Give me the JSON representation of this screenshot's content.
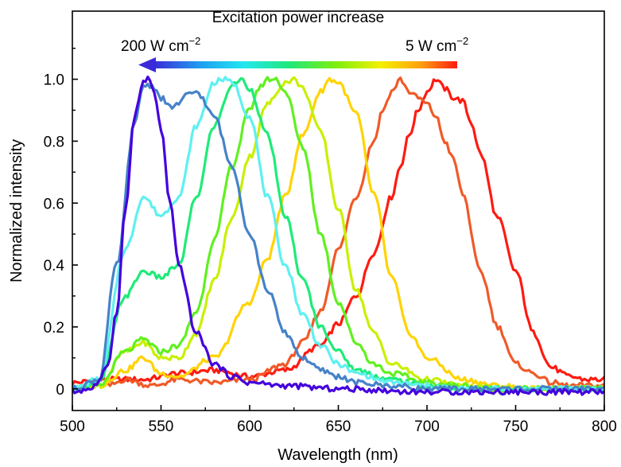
{
  "chart_data": {
    "type": "line",
    "title": "",
    "xlabel": "Wavelength (nm)",
    "ylabel": "Normalized intensity",
    "xlim": [
      500,
      800
    ],
    "ylim": [
      -0.07,
      1.22
    ],
    "xticks": [
      500,
      550,
      600,
      650,
      700,
      750,
      800
    ],
    "yticks": [
      0,
      0.2,
      0.4,
      0.6,
      0.8,
      1.0
    ],
    "ytick_labels": [
      "0",
      "0.2",
      "0.4",
      "0.6",
      "0.8",
      "1.0"
    ],
    "grid": false,
    "annotations": {
      "arrow_title": "Excitation power increase",
      "left_label_base": "200 W cm",
      "left_label_sup": "−2",
      "right_label_base": "5 W cm",
      "right_label_sup": "−2"
    },
    "series": [
      {
        "name": "red",
        "color": "#ff1a10",
        "x": [
          500,
          520,
          540,
          560,
          580,
          600,
          620,
          640,
          650,
          660,
          670,
          680,
          685,
          690,
          695,
          700,
          705,
          710,
          715,
          720,
          725,
          730,
          740,
          750,
          760,
          770,
          780,
          790,
          800
        ],
        "y": [
          0.02,
          0.03,
          0.03,
          0.05,
          0.06,
          0.04,
          0.06,
          0.14,
          0.21,
          0.3,
          0.44,
          0.62,
          0.72,
          0.82,
          0.9,
          0.96,
          1.0,
          0.97,
          0.94,
          0.93,
          0.86,
          0.76,
          0.55,
          0.38,
          0.18,
          0.07,
          0.04,
          0.03,
          0.03
        ]
      },
      {
        "name": "orange-red",
        "color": "#f05a28",
        "x": [
          500,
          520,
          530,
          545,
          560,
          580,
          600,
          620,
          630,
          640,
          650,
          660,
          670,
          675,
          680,
          685,
          690,
          695,
          700,
          705,
          710,
          715,
          720,
          730,
          740,
          750,
          760,
          770,
          780,
          790,
          800
        ],
        "y": [
          0.0,
          0.01,
          0.03,
          0.01,
          0.03,
          0.02,
          0.03,
          0.08,
          0.15,
          0.25,
          0.45,
          0.62,
          0.8,
          0.9,
          0.96,
          1.0,
          0.96,
          0.94,
          0.92,
          0.88,
          0.8,
          0.74,
          0.63,
          0.38,
          0.2,
          0.08,
          0.05,
          0.02,
          0.01,
          0.01,
          0.01
        ]
      },
      {
        "name": "yellow",
        "color": "#ffd300",
        "x": [
          500,
          515,
          530,
          540,
          550,
          560,
          580,
          600,
          610,
          620,
          630,
          640,
          645,
          650,
          660,
          670,
          680,
          690,
          700,
          720,
          740,
          760,
          780,
          800
        ],
        "y": [
          0.0,
          0.01,
          0.06,
          0.1,
          0.05,
          0.04,
          0.1,
          0.28,
          0.42,
          0.62,
          0.82,
          0.96,
          1.0,
          0.99,
          0.89,
          0.63,
          0.36,
          0.18,
          0.1,
          0.03,
          0.01,
          0.0,
          0.0,
          0.0
        ]
      },
      {
        "name": "yellow-green",
        "color": "#c8f000",
        "x": [
          500,
          515,
          530,
          540,
          550,
          560,
          570,
          580,
          590,
          600,
          610,
          620,
          625,
          630,
          640,
          650,
          660,
          670,
          680,
          700,
          720,
          740,
          760,
          800
        ],
        "y": [
          0.0,
          0.01,
          0.12,
          0.15,
          0.1,
          0.1,
          0.18,
          0.35,
          0.55,
          0.75,
          0.92,
          0.99,
          1.0,
          0.97,
          0.83,
          0.58,
          0.32,
          0.18,
          0.08,
          0.03,
          0.01,
          0.0,
          0.0,
          0.0
        ]
      },
      {
        "name": "green",
        "color": "#60f020",
        "x": [
          500,
          515,
          530,
          540,
          550,
          560,
          570,
          580,
          590,
          600,
          605,
          610,
          615,
          620,
          630,
          640,
          650,
          660,
          670,
          680,
          700,
          720,
          740,
          760,
          800
        ],
        "y": [
          0.0,
          0.01,
          0.12,
          0.16,
          0.12,
          0.14,
          0.25,
          0.48,
          0.72,
          0.9,
          0.97,
          1.0,
          1.0,
          0.96,
          0.78,
          0.5,
          0.28,
          0.15,
          0.08,
          0.05,
          0.02,
          0.01,
          0.0,
          0.0,
          0.0
        ]
      },
      {
        "name": "spring-green",
        "color": "#1eeb78",
        "x": [
          500,
          515,
          530,
          540,
          550,
          560,
          570,
          580,
          590,
          595,
          600,
          610,
          620,
          630,
          640,
          650,
          660,
          680,
          700,
          720,
          760,
          800
        ],
        "y": [
          0.0,
          0.02,
          0.3,
          0.38,
          0.36,
          0.4,
          0.62,
          0.85,
          0.98,
          1.0,
          0.97,
          0.82,
          0.56,
          0.35,
          0.2,
          0.12,
          0.06,
          0.03,
          0.01,
          0.0,
          0.0,
          0.0
        ]
      },
      {
        "name": "cyan",
        "color": "#5ff0f0",
        "x": [
          500,
          515,
          530,
          540,
          550,
          560,
          570,
          580,
          585,
          590,
          600,
          610,
          620,
          630,
          640,
          650,
          660,
          680,
          700,
          720,
          760,
          800
        ],
        "y": [
          0.0,
          0.03,
          0.45,
          0.62,
          0.56,
          0.62,
          0.85,
          0.99,
          1.0,
          0.99,
          0.88,
          0.62,
          0.4,
          0.24,
          0.14,
          0.08,
          0.05,
          0.02,
          0.01,
          0.0,
          0.0,
          0.0
        ]
      },
      {
        "name": "steel-blue",
        "color": "#4682c8",
        "x": [
          500,
          515,
          525,
          535,
          540,
          545,
          550,
          555,
          560,
          565,
          570,
          580,
          590,
          600,
          610,
          620,
          630,
          640,
          650,
          660,
          680,
          700,
          720,
          760,
          800
        ],
        "y": [
          0.0,
          0.03,
          0.4,
          0.85,
          0.98,
          0.98,
          0.94,
          0.91,
          0.92,
          0.95,
          0.96,
          0.88,
          0.72,
          0.5,
          0.32,
          0.18,
          0.1,
          0.06,
          0.04,
          0.02,
          0.01,
          0.0,
          0.0,
          0.0,
          0.0
        ]
      },
      {
        "name": "blue-violet",
        "color": "#4400dd",
        "x": [
          500,
          510,
          515,
          520,
          525,
          530,
          535,
          540,
          543,
          546,
          550,
          555,
          560,
          570,
          580,
          590,
          600,
          620,
          650,
          700,
          750,
          800
        ],
        "y": [
          -0.01,
          0.0,
          0.02,
          0.08,
          0.25,
          0.58,
          0.88,
          0.99,
          1.0,
          0.96,
          0.84,
          0.6,
          0.4,
          0.18,
          0.08,
          0.04,
          0.02,
          0.01,
          0.0,
          -0.01,
          -0.01,
          -0.01
        ]
      }
    ]
  }
}
